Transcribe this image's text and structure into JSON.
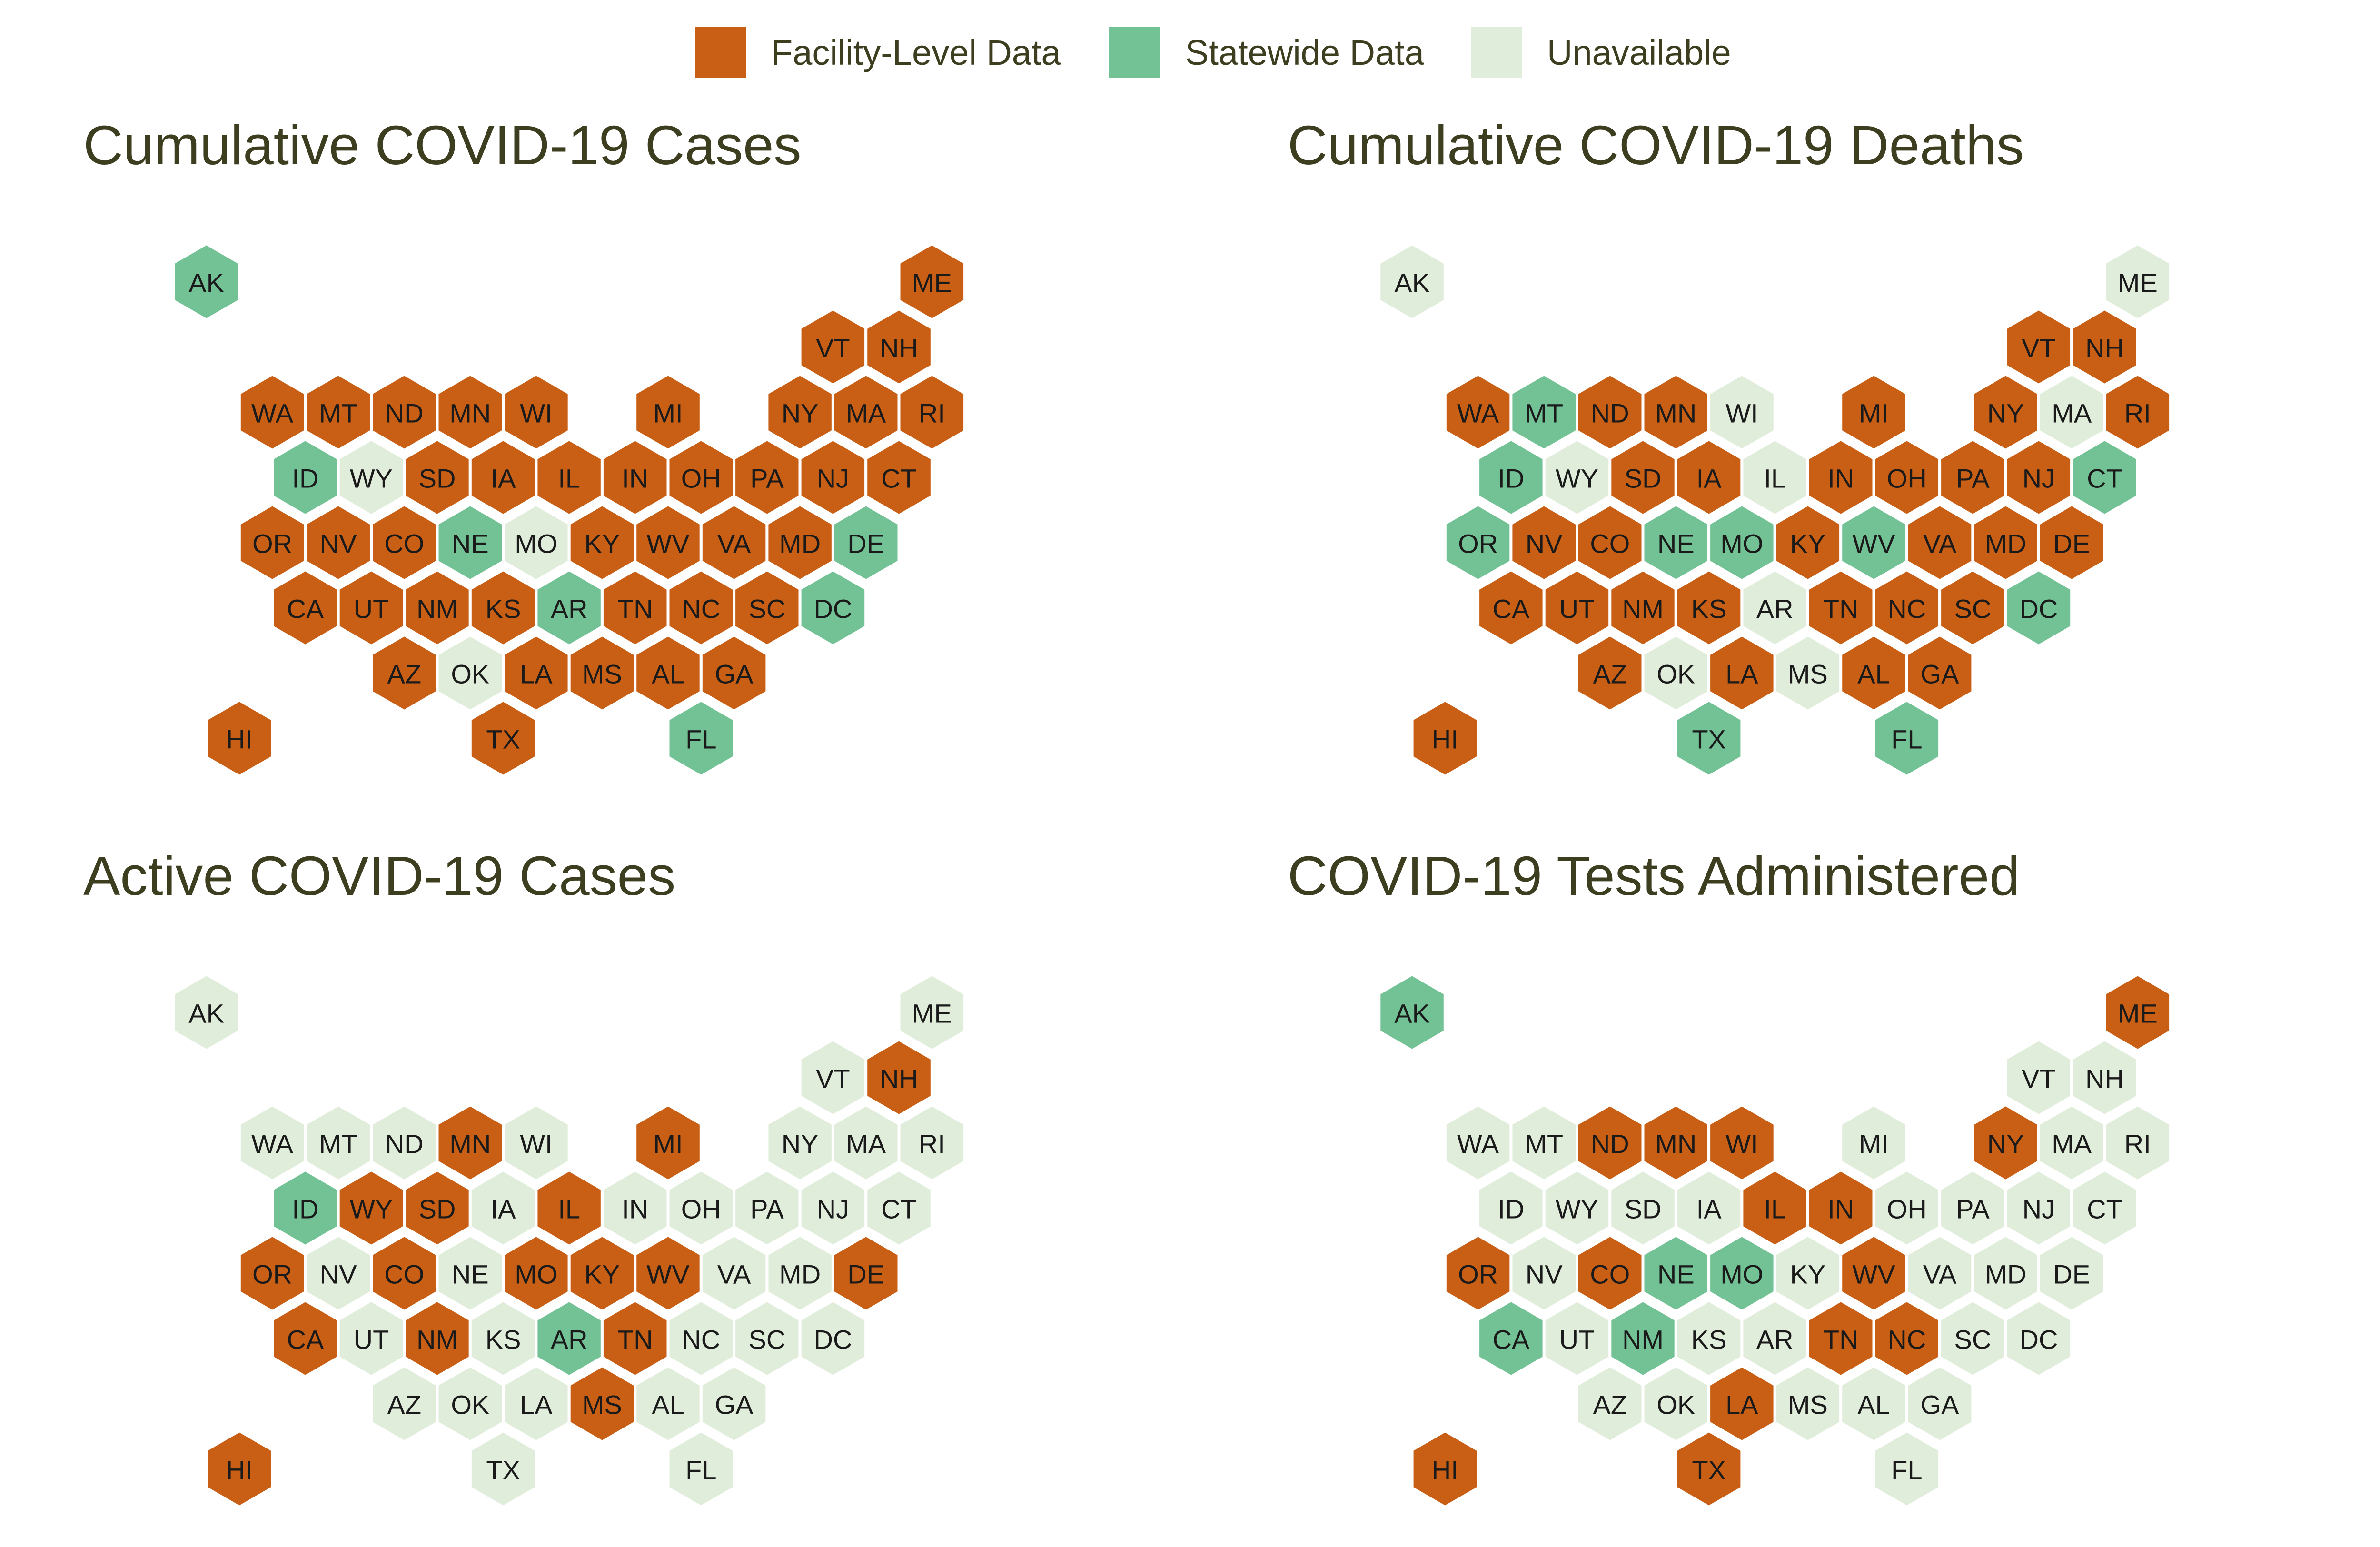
{
  "colors": {
    "facility": "#c95f15",
    "statewide": "#72c295",
    "unavailable": "#e1eddb",
    "title": "#3d3e1f"
  },
  "legend": {
    "items": [
      {
        "key": "facility",
        "label": "Facility-Level Data"
      },
      {
        "key": "statewide",
        "label": "Statewide Data"
      },
      {
        "key": "unavailable",
        "label": "Unavailable"
      }
    ]
  },
  "grid": [
    {
      "state": "AK",
      "row": 0,
      "col": 1
    },
    {
      "state": "ME",
      "row": 0,
      "col": 12
    },
    {
      "state": "VT",
      "row": 1,
      "col": 10
    },
    {
      "state": "NH",
      "row": 1,
      "col": 11
    },
    {
      "state": "WA",
      "row": 2,
      "col": 2
    },
    {
      "state": "MT",
      "row": 2,
      "col": 3
    },
    {
      "state": "ND",
      "row": 2,
      "col": 4
    },
    {
      "state": "MN",
      "row": 2,
      "col": 5
    },
    {
      "state": "WI",
      "row": 2,
      "col": 6
    },
    {
      "state": "MI",
      "row": 2,
      "col": 8
    },
    {
      "state": "NY",
      "row": 2,
      "col": 10
    },
    {
      "state": "MA",
      "row": 2,
      "col": 11
    },
    {
      "state": "RI",
      "row": 2,
      "col": 12
    },
    {
      "state": "ID",
      "row": 3,
      "col": 2
    },
    {
      "state": "WY",
      "row": 3,
      "col": 3
    },
    {
      "state": "SD",
      "row": 3,
      "col": 4
    },
    {
      "state": "IA",
      "row": 3,
      "col": 5
    },
    {
      "state": "IL",
      "row": 3,
      "col": 6
    },
    {
      "state": "IN",
      "row": 3,
      "col": 7
    },
    {
      "state": "OH",
      "row": 3,
      "col": 8
    },
    {
      "state": "PA",
      "row": 3,
      "col": 9
    },
    {
      "state": "NJ",
      "row": 3,
      "col": 10
    },
    {
      "state": "CT",
      "row": 3,
      "col": 11
    },
    {
      "state": "OR",
      "row": 4,
      "col": 2
    },
    {
      "state": "NV",
      "row": 4,
      "col": 3
    },
    {
      "state": "CO",
      "row": 4,
      "col": 4
    },
    {
      "state": "NE",
      "row": 4,
      "col": 5
    },
    {
      "state": "MO",
      "row": 4,
      "col": 6
    },
    {
      "state": "KY",
      "row": 4,
      "col": 7
    },
    {
      "state": "WV",
      "row": 4,
      "col": 8
    },
    {
      "state": "VA",
      "row": 4,
      "col": 9
    },
    {
      "state": "MD",
      "row": 4,
      "col": 10
    },
    {
      "state": "DE",
      "row": 4,
      "col": 11
    },
    {
      "state": "CA",
      "row": 5,
      "col": 2
    },
    {
      "state": "UT",
      "row": 5,
      "col": 3
    },
    {
      "state": "NM",
      "row": 5,
      "col": 4
    },
    {
      "state": "KS",
      "row": 5,
      "col": 5
    },
    {
      "state": "AR",
      "row": 5,
      "col": 6
    },
    {
      "state": "TN",
      "row": 5,
      "col": 7
    },
    {
      "state": "NC",
      "row": 5,
      "col": 8
    },
    {
      "state": "SC",
      "row": 5,
      "col": 9
    },
    {
      "state": "DC",
      "row": 5,
      "col": 10
    },
    {
      "state": "AZ",
      "row": 6,
      "col": 4
    },
    {
      "state": "OK",
      "row": 6,
      "col": 5
    },
    {
      "state": "LA",
      "row": 6,
      "col": 6
    },
    {
      "state": "MS",
      "row": 6,
      "col": 7
    },
    {
      "state": "AL",
      "row": 6,
      "col": 8
    },
    {
      "state": "GA",
      "row": 6,
      "col": 9
    },
    {
      "state": "HI",
      "row": 7,
      "col": 1
    },
    {
      "state": "TX",
      "row": 7,
      "col": 5
    },
    {
      "state": "FL",
      "row": 7,
      "col": 8
    }
  ],
  "panels": [
    {
      "title": "Cumulative COVID-19 Cases",
      "status": {
        "AK": "statewide",
        "ME": "facility",
        "VT": "facility",
        "NH": "facility",
        "WA": "facility",
        "MT": "facility",
        "ND": "facility",
        "MN": "facility",
        "WI": "facility",
        "MI": "facility",
        "NY": "facility",
        "MA": "facility",
        "RI": "facility",
        "ID": "statewide",
        "WY": "unavailable",
        "SD": "facility",
        "IA": "facility",
        "IL": "facility",
        "IN": "facility",
        "OH": "facility",
        "PA": "facility",
        "NJ": "facility",
        "CT": "facility",
        "OR": "facility",
        "NV": "facility",
        "CO": "facility",
        "NE": "statewide",
        "MO": "unavailable",
        "KY": "facility",
        "WV": "facility",
        "VA": "facility",
        "MD": "facility",
        "DE": "statewide",
        "CA": "facility",
        "UT": "facility",
        "NM": "facility",
        "KS": "facility",
        "AR": "statewide",
        "TN": "facility",
        "NC": "facility",
        "SC": "facility",
        "DC": "statewide",
        "AZ": "facility",
        "OK": "unavailable",
        "LA": "facility",
        "MS": "facility",
        "AL": "facility",
        "GA": "facility",
        "HI": "facility",
        "TX": "facility",
        "FL": "statewide"
      }
    },
    {
      "title": "Cumulative COVID-19 Deaths",
      "status": {
        "AK": "unavailable",
        "ME": "unavailable",
        "VT": "facility",
        "NH": "facility",
        "WA": "facility",
        "MT": "statewide",
        "ND": "facility",
        "MN": "facility",
        "WI": "unavailable",
        "MI": "facility",
        "NY": "facility",
        "MA": "unavailable",
        "RI": "facility",
        "ID": "statewide",
        "WY": "unavailable",
        "SD": "facility",
        "IA": "facility",
        "IL": "unavailable",
        "IN": "facility",
        "OH": "facility",
        "PA": "facility",
        "NJ": "facility",
        "CT": "statewide",
        "OR": "statewide",
        "NV": "facility",
        "CO": "facility",
        "NE": "statewide",
        "MO": "statewide",
        "KY": "facility",
        "WV": "statewide",
        "VA": "facility",
        "MD": "facility",
        "DE": "facility",
        "CA": "facility",
        "UT": "facility",
        "NM": "facility",
        "KS": "facility",
        "AR": "unavailable",
        "TN": "facility",
        "NC": "facility",
        "SC": "facility",
        "DC": "statewide",
        "AZ": "facility",
        "OK": "unavailable",
        "LA": "facility",
        "MS": "unavailable",
        "AL": "facility",
        "GA": "facility",
        "HI": "facility",
        "TX": "statewide",
        "FL": "statewide"
      }
    },
    {
      "title": "Active COVID-19 Cases",
      "status": {
        "AK": "unavailable",
        "ME": "unavailable",
        "VT": "unavailable",
        "NH": "facility",
        "WA": "unavailable",
        "MT": "unavailable",
        "ND": "unavailable",
        "MN": "facility",
        "WI": "unavailable",
        "MI": "facility",
        "NY": "unavailable",
        "MA": "unavailable",
        "RI": "unavailable",
        "ID": "statewide",
        "WY": "facility",
        "SD": "facility",
        "IA": "unavailable",
        "IL": "facility",
        "IN": "unavailable",
        "OH": "unavailable",
        "PA": "unavailable",
        "NJ": "unavailable",
        "CT": "unavailable",
        "OR": "facility",
        "NV": "unavailable",
        "CO": "facility",
        "NE": "unavailable",
        "MO": "facility",
        "KY": "facility",
        "WV": "facility",
        "VA": "unavailable",
        "MD": "unavailable",
        "DE": "facility",
        "CA": "facility",
        "UT": "unavailable",
        "NM": "facility",
        "KS": "unavailable",
        "AR": "statewide",
        "TN": "facility",
        "NC": "unavailable",
        "SC": "unavailable",
        "DC": "unavailable",
        "AZ": "unavailable",
        "OK": "unavailable",
        "LA": "unavailable",
        "MS": "facility",
        "AL": "unavailable",
        "GA": "unavailable",
        "HI": "facility",
        "TX": "unavailable",
        "FL": "unavailable"
      }
    },
    {
      "title": "COVID-19 Tests Administered",
      "status": {
        "AK": "statewide",
        "ME": "facility",
        "VT": "unavailable",
        "NH": "unavailable",
        "WA": "unavailable",
        "MT": "unavailable",
        "ND": "facility",
        "MN": "facility",
        "WI": "facility",
        "MI": "unavailable",
        "NY": "facility",
        "MA": "unavailable",
        "RI": "unavailable",
        "ID": "unavailable",
        "WY": "unavailable",
        "SD": "unavailable",
        "IA": "unavailable",
        "IL": "facility",
        "IN": "facility",
        "OH": "unavailable",
        "PA": "unavailable",
        "NJ": "unavailable",
        "CT": "unavailable",
        "OR": "facility",
        "NV": "unavailable",
        "CO": "facility",
        "NE": "statewide",
        "MO": "statewide",
        "KY": "unavailable",
        "WV": "facility",
        "VA": "unavailable",
        "MD": "unavailable",
        "DE": "unavailable",
        "CA": "statewide",
        "UT": "unavailable",
        "NM": "statewide",
        "KS": "unavailable",
        "AR": "unavailable",
        "TN": "facility",
        "NC": "facility",
        "SC": "unavailable",
        "DC": "unavailable",
        "AZ": "unavailable",
        "OK": "unavailable",
        "LA": "facility",
        "MS": "unavailable",
        "AL": "unavailable",
        "GA": "unavailable",
        "HI": "facility",
        "TX": "facility",
        "FL": "unavailable"
      }
    }
  ]
}
